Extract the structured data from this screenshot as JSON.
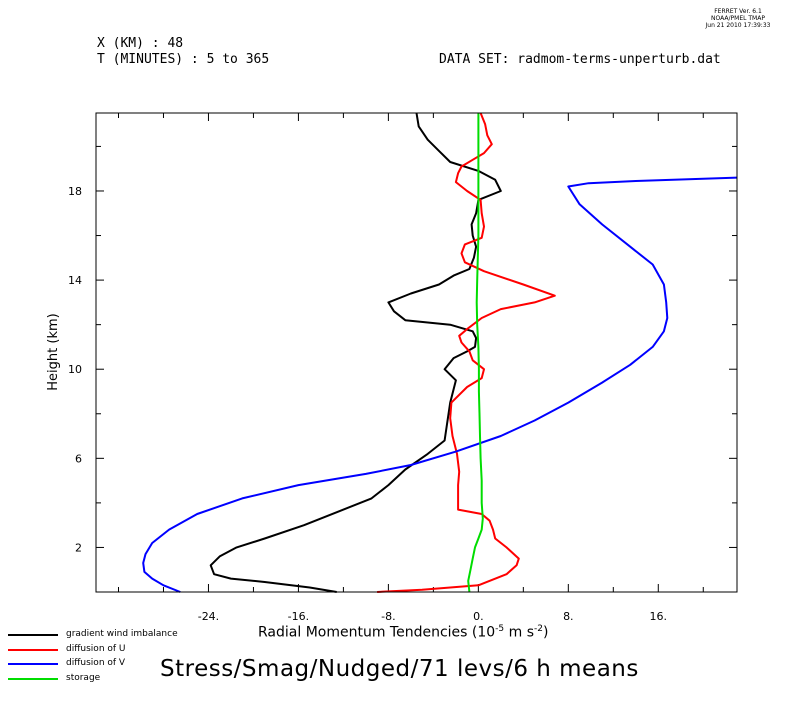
{
  "header": {
    "ferret_lines": [
      "FERRET Ver. 6.1",
      "NOAA/PMEL TMAP",
      "Jun 21 2010 17:39:33"
    ],
    "x_line": "X (KM) : 48",
    "t_line": "T (MINUTES) : 5 to 365",
    "dataset_line": "DATA SET: radmom-terms-unperturb.dat"
  },
  "title": "Stress/Smag/Nudged/71 levs/6 h means",
  "chart_data": {
    "type": "line",
    "xlabel_prefix": "Radial Momentum Tendencies (10",
    "xlabel_exp": "-5",
    "xlabel_mid": " m s",
    "xlabel_exp2": "-2",
    "xlabel_suffix": ")",
    "ylabel": "Height (km)",
    "xlim": [
      -34,
      23
    ],
    "ylim": [
      0,
      21.5
    ],
    "x_ticks": [
      -24,
      -16,
      -8,
      0,
      8,
      16
    ],
    "x_tick_labels": [
      "-24.",
      "-16.",
      "-8.",
      "0.",
      "8.",
      "16."
    ],
    "y_ticks": [
      2,
      6,
      10,
      14,
      18
    ],
    "y_tick_labels": [
      "2",
      "6",
      "10",
      "14",
      "18"
    ],
    "x_minor_step": 4,
    "y_minor_step": 2,
    "legend_position": "bottom-left",
    "series": [
      {
        "name": "gradient wind imbalance",
        "color": "#000000",
        "points": [
          [
            -12.6,
            0
          ],
          [
            -15,
            0.2
          ],
          [
            -19,
            0.45
          ],
          [
            -22,
            0.6
          ],
          [
            -23.5,
            0.8
          ],
          [
            -23.8,
            1.2
          ],
          [
            -23,
            1.6
          ],
          [
            -21.5,
            2
          ],
          [
            -19,
            2.4
          ],
          [
            -15.5,
            3
          ],
          [
            -12.5,
            3.6
          ],
          [
            -9.5,
            4.2
          ],
          [
            -8,
            4.8
          ],
          [
            -6.5,
            5.5
          ],
          [
            -4.5,
            6.2
          ],
          [
            -3,
            6.8
          ],
          [
            -2.8,
            7.5
          ],
          [
            -2.5,
            8.5
          ],
          [
            -2,
            9.5
          ],
          [
            -3,
            10
          ],
          [
            -2.2,
            10.5
          ],
          [
            -1,
            10.8
          ],
          [
            -0.3,
            11
          ],
          [
            -0.2,
            11.4
          ],
          [
            -0.5,
            11.7
          ],
          [
            -2.5,
            12
          ],
          [
            -6.5,
            12.2
          ],
          [
            -7.5,
            12.6
          ],
          [
            -8,
            13
          ],
          [
            -6,
            13.4
          ],
          [
            -3.5,
            13.8
          ],
          [
            -2.2,
            14.2
          ],
          [
            -0.8,
            14.5
          ],
          [
            -0.4,
            15
          ],
          [
            -0.2,
            15.5
          ],
          [
            -0.5,
            16
          ],
          [
            -0.6,
            16.5
          ],
          [
            -0.2,
            17
          ],
          [
            0,
            17.6
          ],
          [
            2,
            18
          ],
          [
            1.5,
            18.5
          ],
          [
            0,
            18.9
          ],
          [
            -2.5,
            19.3
          ],
          [
            -3.5,
            19.8
          ],
          [
            -4.5,
            20.3
          ],
          [
            -5.3,
            20.9
          ],
          [
            -5.5,
            21.5
          ]
        ]
      },
      {
        "name": "diffusion of U",
        "color": "#ff0000",
        "points": [
          [
            -9,
            0
          ],
          [
            -5,
            0.1
          ],
          [
            0,
            0.3
          ],
          [
            2.5,
            0.8
          ],
          [
            3.4,
            1.2
          ],
          [
            3.6,
            1.5
          ],
          [
            2.5,
            2
          ],
          [
            1.5,
            2.4
          ],
          [
            1.3,
            2.8
          ],
          [
            1,
            3.2
          ],
          [
            0.3,
            3.5
          ],
          [
            -1.8,
            3.7
          ],
          [
            -1.8,
            4.2
          ],
          [
            -1.8,
            4.8
          ],
          [
            -1.7,
            5.4
          ],
          [
            -1.9,
            6.2
          ],
          [
            -2.3,
            7
          ],
          [
            -2.5,
            7.8
          ],
          [
            -2.4,
            8.5
          ],
          [
            -1,
            9.2
          ],
          [
            0.3,
            9.6
          ],
          [
            0.5,
            10
          ],
          [
            -0.5,
            10.4
          ],
          [
            -0.8,
            10.8
          ],
          [
            -1.5,
            11.2
          ],
          [
            -1.7,
            11.5
          ],
          [
            -1,
            11.8
          ],
          [
            0.3,
            12.3
          ],
          [
            2,
            12.7
          ],
          [
            5,
            13
          ],
          [
            6.8,
            13.3
          ],
          [
            4,
            13.8
          ],
          [
            0.5,
            14.4
          ],
          [
            -1.2,
            14.8
          ],
          [
            -1.5,
            15.2
          ],
          [
            -1.2,
            15.6
          ],
          [
            0.3,
            15.9
          ],
          [
            0.5,
            16.4
          ],
          [
            0.3,
            17
          ],
          [
            0.2,
            17.6
          ],
          [
            -1,
            18
          ],
          [
            -2,
            18.4
          ],
          [
            -1.8,
            18.8
          ],
          [
            -1.5,
            19.1
          ],
          [
            -0.5,
            19.4
          ],
          [
            0.5,
            19.7
          ],
          [
            1.2,
            20.1
          ],
          [
            0.8,
            20.5
          ],
          [
            0.6,
            21
          ],
          [
            0.2,
            21.5
          ]
        ]
      },
      {
        "name": "diffusion of V",
        "color": "#0000ff",
        "points": [
          [
            -26.5,
            0
          ],
          [
            -28,
            0.3
          ],
          [
            -29,
            0.6
          ],
          [
            -29.7,
            0.9
          ],
          [
            -29.8,
            1.3
          ],
          [
            -29.6,
            1.7
          ],
          [
            -29,
            2.2
          ],
          [
            -27.5,
            2.8
          ],
          [
            -25,
            3.5
          ],
          [
            -21,
            4.2
          ],
          [
            -16,
            4.8
          ],
          [
            -10,
            5.3
          ],
          [
            -6,
            5.7
          ],
          [
            -2,
            6.3
          ],
          [
            2,
            7
          ],
          [
            5,
            7.7
          ],
          [
            8,
            8.5
          ],
          [
            11,
            9.4
          ],
          [
            13.5,
            10.2
          ],
          [
            15.5,
            11
          ],
          [
            16.5,
            11.7
          ],
          [
            16.8,
            12.3
          ],
          [
            16.7,
            13
          ],
          [
            16.5,
            13.8
          ],
          [
            15.5,
            14.7
          ],
          [
            13.5,
            15.5
          ],
          [
            11,
            16.5
          ],
          [
            9,
            17.4
          ],
          [
            8,
            18.2
          ],
          [
            9.8,
            18.35
          ],
          [
            14,
            18.45
          ],
          [
            20,
            18.55
          ],
          [
            23,
            18.6
          ]
        ]
      },
      {
        "name": "storage",
        "color": "#00dd00",
        "points": [
          [
            -0.8,
            0
          ],
          [
            -0.9,
            0.5
          ],
          [
            -0.7,
            1
          ],
          [
            -0.5,
            1.5
          ],
          [
            -0.3,
            2
          ],
          [
            0,
            2.4
          ],
          [
            0.3,
            2.8
          ],
          [
            0.4,
            3.3
          ],
          [
            0.3,
            4
          ],
          [
            0.3,
            5
          ],
          [
            0.2,
            6
          ],
          [
            0.15,
            7
          ],
          [
            0.1,
            8
          ],
          [
            0.05,
            9
          ],
          [
            0.05,
            10
          ],
          [
            0,
            11
          ],
          [
            -0.1,
            12
          ],
          [
            -0.15,
            13
          ],
          [
            -0.1,
            14
          ],
          [
            -0.05,
            15
          ],
          [
            0,
            16
          ],
          [
            0,
            17
          ],
          [
            0,
            18
          ],
          [
            0,
            19
          ],
          [
            0,
            20
          ],
          [
            0,
            21.5
          ]
        ]
      }
    ]
  }
}
